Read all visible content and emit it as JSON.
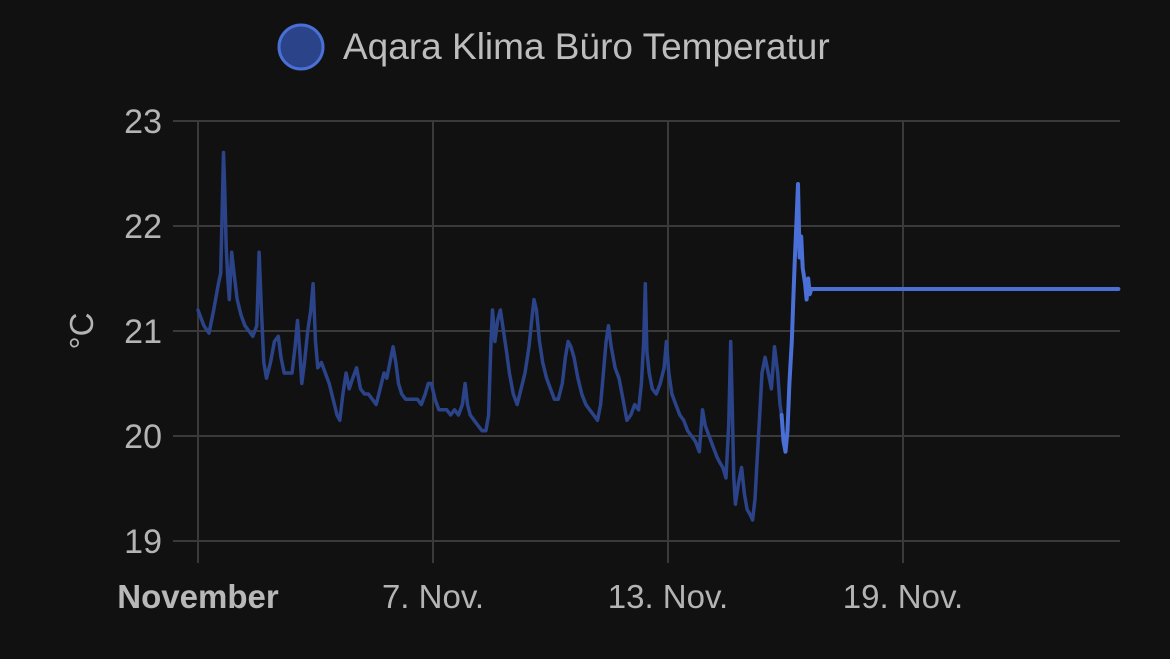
{
  "chart_data": {
    "type": "line",
    "title": "",
    "ylabel": "°C",
    "xlabel": "",
    "ylim": [
      19,
      23
    ],
    "xlim": [
      1,
      24.5
    ],
    "yticks": [
      {
        "value": 23,
        "label": "23"
      },
      {
        "value": 22,
        "label": "22"
      },
      {
        "value": 21,
        "label": "21"
      },
      {
        "value": 20,
        "label": "20"
      },
      {
        "value": 19,
        "label": "19"
      }
    ],
    "xticks": [
      {
        "value": 1,
        "label": "November",
        "bold": true
      },
      {
        "value": 7,
        "label": "7. Nov.",
        "bold": false
      },
      {
        "value": 13,
        "label": "13. Nov.",
        "bold": false
      },
      {
        "value": 19,
        "label": "19. Nov.",
        "bold": false
      }
    ],
    "grid": true,
    "legend_position": "top-center",
    "series": [
      {
        "name": "Aqara Klima Büro Temperatur",
        "color": "#4a6fd6",
        "history_color": "#2b4389",
        "segments": [
          {
            "style": "history",
            "points": [
              [
                1.0,
                21.2
              ],
              [
                1.15,
                21.05
              ],
              [
                1.28,
                20.98
              ],
              [
                1.4,
                21.2
              ],
              [
                1.52,
                21.45
              ],
              [
                1.58,
                21.55
              ],
              [
                1.62,
                22.2
              ],
              [
                1.65,
                22.7
              ],
              [
                1.68,
                22.4
              ],
              [
                1.72,
                21.8
              ],
              [
                1.76,
                21.5
              ],
              [
                1.8,
                21.3
              ],
              [
                1.86,
                21.75
              ],
              [
                1.92,
                21.55
              ],
              [
                2.0,
                21.3
              ],
              [
                2.1,
                21.15
              ],
              [
                2.2,
                21.05
              ],
              [
                2.3,
                21.0
              ],
              [
                2.4,
                20.95
              ],
              [
                2.5,
                21.05
              ],
              [
                2.56,
                21.75
              ],
              [
                2.62,
                21.2
              ],
              [
                2.68,
                20.7
              ],
              [
                2.75,
                20.55
              ],
              [
                2.85,
                20.7
              ],
              [
                2.95,
                20.9
              ],
              [
                3.05,
                20.95
              ],
              [
                3.12,
                20.75
              ],
              [
                3.2,
                20.6
              ],
              [
                3.3,
                20.6
              ],
              [
                3.4,
                20.6
              ],
              [
                3.48,
                20.85
              ],
              [
                3.54,
                21.1
              ],
              [
                3.6,
                20.8
              ],
              [
                3.65,
                20.5
              ],
              [
                3.72,
                20.7
              ],
              [
                3.8,
                21.0
              ],
              [
                3.88,
                21.2
              ],
              [
                3.94,
                21.45
              ],
              [
                4.0,
                20.9
              ],
              [
                4.06,
                20.65
              ],
              [
                4.15,
                20.7
              ],
              [
                4.25,
                20.6
              ],
              [
                4.35,
                20.5
              ],
              [
                4.45,
                20.35
              ],
              [
                4.55,
                20.2
              ],
              [
                4.62,
                20.15
              ],
              [
                4.7,
                20.4
              ],
              [
                4.78,
                20.6
              ],
              [
                4.86,
                20.45
              ],
              [
                4.95,
                20.55
              ],
              [
                5.05,
                20.65
              ],
              [
                5.15,
                20.45
              ],
              [
                5.25,
                20.4
              ],
              [
                5.35,
                20.4
              ],
              [
                5.45,
                20.35
              ],
              [
                5.55,
                20.3
              ],
              [
                5.65,
                20.45
              ],
              [
                5.75,
                20.6
              ],
              [
                5.82,
                20.55
              ],
              [
                5.9,
                20.7
              ],
              [
                5.98,
                20.85
              ],
              [
                6.05,
                20.7
              ],
              [
                6.12,
                20.5
              ],
              [
                6.2,
                20.4
              ],
              [
                6.3,
                20.35
              ],
              [
                6.4,
                20.35
              ],
              [
                6.5,
                20.35
              ],
              [
                6.6,
                20.35
              ],
              [
                6.7,
                20.3
              ],
              [
                6.8,
                20.4
              ],
              [
                6.88,
                20.5
              ],
              [
                6.96,
                20.5
              ],
              [
                7.05,
                20.35
              ],
              [
                7.15,
                20.25
              ],
              [
                7.25,
                20.25
              ],
              [
                7.35,
                20.25
              ],
              [
                7.45,
                20.2
              ],
              [
                7.55,
                20.25
              ],
              [
                7.65,
                20.2
              ],
              [
                7.75,
                20.3
              ],
              [
                7.82,
                20.5
              ],
              [
                7.88,
                20.3
              ],
              [
                7.95,
                20.2
              ],
              [
                8.05,
                20.15
              ],
              [
                8.15,
                20.1
              ],
              [
                8.25,
                20.05
              ],
              [
                8.35,
                20.05
              ],
              [
                8.42,
                20.2
              ],
              [
                8.48,
                20.9
              ],
              [
                8.52,
                21.2
              ],
              [
                8.58,
                20.9
              ],
              [
                8.65,
                21.1
              ],
              [
                8.72,
                21.2
              ],
              [
                8.8,
                21.0
              ],
              [
                8.88,
                20.8
              ],
              [
                8.95,
                20.6
              ],
              [
                9.05,
                20.4
              ],
              [
                9.15,
                20.3
              ],
              [
                9.25,
                20.45
              ],
              [
                9.35,
                20.6
              ],
              [
                9.45,
                20.85
              ],
              [
                9.52,
                21.1
              ],
              [
                9.58,
                21.3
              ],
              [
                9.64,
                21.2
              ],
              [
                9.72,
                20.9
              ],
              [
                9.8,
                20.7
              ],
              [
                9.9,
                20.55
              ],
              [
                10.0,
                20.45
              ],
              [
                10.1,
                20.35
              ],
              [
                10.2,
                20.35
              ],
              [
                10.3,
                20.5
              ],
              [
                10.38,
                20.75
              ],
              [
                10.45,
                20.9
              ],
              [
                10.52,
                20.85
              ],
              [
                10.6,
                20.75
              ],
              [
                10.7,
                20.55
              ],
              [
                10.8,
                20.4
              ],
              [
                10.9,
                20.3
              ],
              [
                11.0,
                20.25
              ],
              [
                11.1,
                20.2
              ],
              [
                11.2,
                20.15
              ],
              [
                11.28,
                20.3
              ],
              [
                11.35,
                20.6
              ],
              [
                11.42,
                20.9
              ],
              [
                11.48,
                21.05
              ],
              [
                11.55,
                20.85
              ],
              [
                11.65,
                20.65
              ],
              [
                11.75,
                20.55
              ],
              [
                11.85,
                20.35
              ],
              [
                11.95,
                20.15
              ],
              [
                12.05,
                20.2
              ],
              [
                12.15,
                20.3
              ],
              [
                12.25,
                20.25
              ],
              [
                12.32,
                20.5
              ],
              [
                12.38,
                20.9
              ],
              [
                12.42,
                21.45
              ],
              [
                12.46,
                20.8
              ],
              [
                12.52,
                20.6
              ],
              [
                12.6,
                20.45
              ],
              [
                12.7,
                20.4
              ],
              [
                12.8,
                20.5
              ],
              [
                12.9,
                20.65
              ],
              [
                12.96,
                20.9
              ],
              [
                13.02,
                20.6
              ],
              [
                13.1,
                20.4
              ],
              [
                13.2,
                20.3
              ],
              [
                13.3,
                20.2
              ],
              [
                13.4,
                20.15
              ],
              [
                13.5,
                20.05
              ],
              [
                13.6,
                20.0
              ],
              [
                13.7,
                19.95
              ],
              [
                13.8,
                19.85
              ],
              [
                13.88,
                20.25
              ],
              [
                13.95,
                20.1
              ],
              [
                14.05,
                20.0
              ],
              [
                14.15,
                19.9
              ],
              [
                14.25,
                19.8
              ],
              [
                14.32,
                19.75
              ],
              [
                14.4,
                19.7
              ],
              [
                14.48,
                19.6
              ],
              [
                14.55,
                20.1
              ],
              [
                14.6,
                20.9
              ],
              [
                14.64,
                20.3
              ],
              [
                14.68,
                19.6
              ],
              [
                14.72,
                19.35
              ],
              [
                14.8,
                19.55
              ],
              [
                14.88,
                19.7
              ],
              [
                14.95,
                19.45
              ],
              [
                15.02,
                19.3
              ],
              [
                15.1,
                19.25
              ],
              [
                15.16,
                19.2
              ],
              [
                15.22,
                19.4
              ],
              [
                15.28,
                19.8
              ],
              [
                15.34,
                20.2
              ],
              [
                15.4,
                20.6
              ],
              [
                15.48,
                20.75
              ],
              [
                15.56,
                20.6
              ],
              [
                15.64,
                20.45
              ],
              [
                15.72,
                20.85
              ],
              [
                15.8,
                20.6
              ],
              [
                15.86,
                20.3
              ],
              [
                15.9,
                20.2
              ]
            ]
          },
          {
            "style": "recent",
            "points": [
              [
                15.9,
                20.2
              ],
              [
                15.95,
                19.95
              ],
              [
                16.0,
                19.85
              ],
              [
                16.05,
                20.05
              ],
              [
                16.1,
                20.5
              ],
              [
                16.16,
                20.9
              ],
              [
                16.2,
                21.3
              ],
              [
                16.24,
                21.7
              ],
              [
                16.28,
                22.05
              ],
              [
                16.32,
                22.4
              ],
              [
                16.36,
                21.7
              ],
              [
                16.4,
                21.9
              ],
              [
                16.44,
                21.6
              ],
              [
                16.5,
                21.45
              ],
              [
                16.54,
                21.3
              ],
              [
                16.58,
                21.5
              ],
              [
                16.62,
                21.35
              ],
              [
                16.66,
                21.4
              ],
              [
                16.72,
                21.4
              ],
              [
                24.5,
                21.4
              ]
            ]
          }
        ]
      }
    ]
  }
}
